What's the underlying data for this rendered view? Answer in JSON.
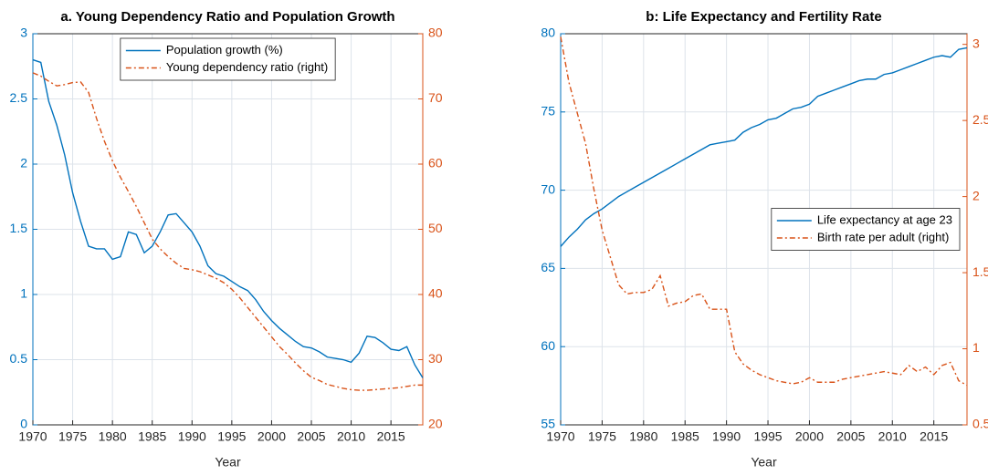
{
  "chart_data": [
    {
      "type": "line",
      "title": "a. Young Dependency Ratio and Population Growth",
      "xlabel": "Year",
      "x": [
        1970,
        1971,
        1972,
        1973,
        1974,
        1975,
        1976,
        1977,
        1978,
        1979,
        1980,
        1981,
        1982,
        1983,
        1984,
        1985,
        1986,
        1987,
        1988,
        1989,
        1990,
        1991,
        1992,
        1993,
        1994,
        1995,
        1996,
        1997,
        1998,
        1999,
        2000,
        2001,
        2002,
        2003,
        2004,
        2005,
        2006,
        2007,
        2008,
        2009,
        2010,
        2011,
        2012,
        2013,
        2014,
        2015,
        2016,
        2017,
        2018,
        2019
      ],
      "xlim": [
        1970,
        2019
      ],
      "xticks": [
        1970,
        1975,
        1980,
        1985,
        1990,
        1995,
        2000,
        2005,
        2010,
        2015
      ],
      "ylim": [
        0,
        3
      ],
      "yticks": [
        0,
        0.5,
        1,
        1.5,
        2,
        2.5,
        3
      ],
      "y2lim": [
        20,
        80
      ],
      "y2ticks": [
        20,
        30,
        40,
        50,
        60,
        70,
        80
      ],
      "grid": true,
      "legend": "upper center",
      "series": [
        {
          "name": "Population growth (%)",
          "color": "#0072bd",
          "style": "solid",
          "axis": "y",
          "values": [
            2.8,
            2.78,
            2.48,
            2.3,
            2.07,
            1.78,
            1.56,
            1.37,
            1.35,
            1.35,
            1.27,
            1.29,
            1.48,
            1.46,
            1.32,
            1.37,
            1.48,
            1.61,
            1.62,
            1.55,
            1.48,
            1.37,
            1.22,
            1.16,
            1.14,
            1.1,
            1.06,
            1.03,
            0.96,
            0.87,
            0.8,
            0.74,
            0.69,
            0.64,
            0.6,
            0.59,
            0.56,
            0.52,
            0.51,
            0.5,
            0.48,
            0.55,
            0.68,
            0.67,
            0.63,
            0.58,
            0.57,
            0.6,
            0.46,
            0.36
          ]
        },
        {
          "name": "Young dependency ratio (right)",
          "color": "#d95319",
          "style": "dashdot",
          "axis": "y2",
          "values": [
            74,
            73.5,
            72.7,
            72,
            72.2,
            72.5,
            72.6,
            71,
            67,
            63.5,
            60.5,
            58,
            55.8,
            53.5,
            51,
            48.5,
            47,
            45.8,
            44.8,
            44,
            43.8,
            43.5,
            43,
            42.5,
            41.8,
            40.8,
            39.5,
            38,
            36.5,
            35,
            33.5,
            32,
            30.8,
            29.5,
            28.3,
            27.3,
            26.8,
            26.2,
            25.9,
            25.6,
            25.4,
            25.3,
            25.3,
            25.4,
            25.5,
            25.6,
            25.7,
            25.9,
            26.1,
            26.1
          ]
        }
      ]
    },
    {
      "type": "line",
      "title": "b: Life Expectancy and Fertility Rate",
      "xlabel": "Year",
      "x": [
        1970,
        1971,
        1972,
        1973,
        1974,
        1975,
        1976,
        1977,
        1978,
        1979,
        1980,
        1981,
        1982,
        1983,
        1984,
        1985,
        1986,
        1987,
        1988,
        1989,
        1990,
        1991,
        1992,
        1993,
        1994,
        1995,
        1996,
        1997,
        1998,
        1999,
        2000,
        2001,
        2002,
        2003,
        2004,
        2005,
        2006,
        2007,
        2008,
        2009,
        2010,
        2011,
        2012,
        2013,
        2014,
        2015,
        2016,
        2017,
        2018,
        2019
      ],
      "xlim": [
        1970,
        2019
      ],
      "xticks": [
        1970,
        1975,
        1980,
        1985,
        1990,
        1995,
        2000,
        2005,
        2010,
        2015
      ],
      "ylim": [
        55,
        80
      ],
      "yticks": [
        55,
        60,
        65,
        70,
        75,
        80
      ],
      "y2lim": [
        0.5,
        3.07
      ],
      "y2ticks": [
        0.5,
        1,
        1.5,
        2,
        2.5,
        3
      ],
      "grid": true,
      "legend": "center right",
      "series": [
        {
          "name": "Life expectancy at age 23",
          "color": "#0072bd",
          "style": "solid",
          "axis": "y",
          "values": [
            66.4,
            67.0,
            67.5,
            68.1,
            68.5,
            68.8,
            69.2,
            69.6,
            69.9,
            70.2,
            70.5,
            70.8,
            71.1,
            71.4,
            71.7,
            72.0,
            72.3,
            72.6,
            72.9,
            73.0,
            73.1,
            73.2,
            73.7,
            74.0,
            74.2,
            74.5,
            74.6,
            74.9,
            75.2,
            75.3,
            75.5,
            76.0,
            76.2,
            76.4,
            76.6,
            76.8,
            77.0,
            77.1,
            77.1,
            77.4,
            77.5,
            77.7,
            77.9,
            78.1,
            78.3,
            78.5,
            78.6,
            78.5,
            79.0,
            79.1
          ]
        },
        {
          "name": "Birth rate per adult (right)",
          "color": "#d95319",
          "style": "dashdot",
          "axis": "y2",
          "values": [
            3.05,
            2.75,
            2.55,
            2.35,
            2.05,
            1.78,
            1.6,
            1.42,
            1.36,
            1.37,
            1.37,
            1.39,
            1.48,
            1.28,
            1.3,
            1.31,
            1.35,
            1.36,
            1.26,
            1.26,
            1.26,
            0.98,
            0.9,
            0.86,
            0.83,
            0.81,
            0.79,
            0.78,
            0.77,
            0.78,
            0.81,
            0.78,
            0.78,
            0.78,
            0.8,
            0.81,
            0.82,
            0.83,
            0.84,
            0.85,
            0.84,
            0.83,
            0.89,
            0.85,
            0.88,
            0.83,
            0.89,
            0.91,
            0.79,
            0.76
          ]
        }
      ]
    }
  ]
}
